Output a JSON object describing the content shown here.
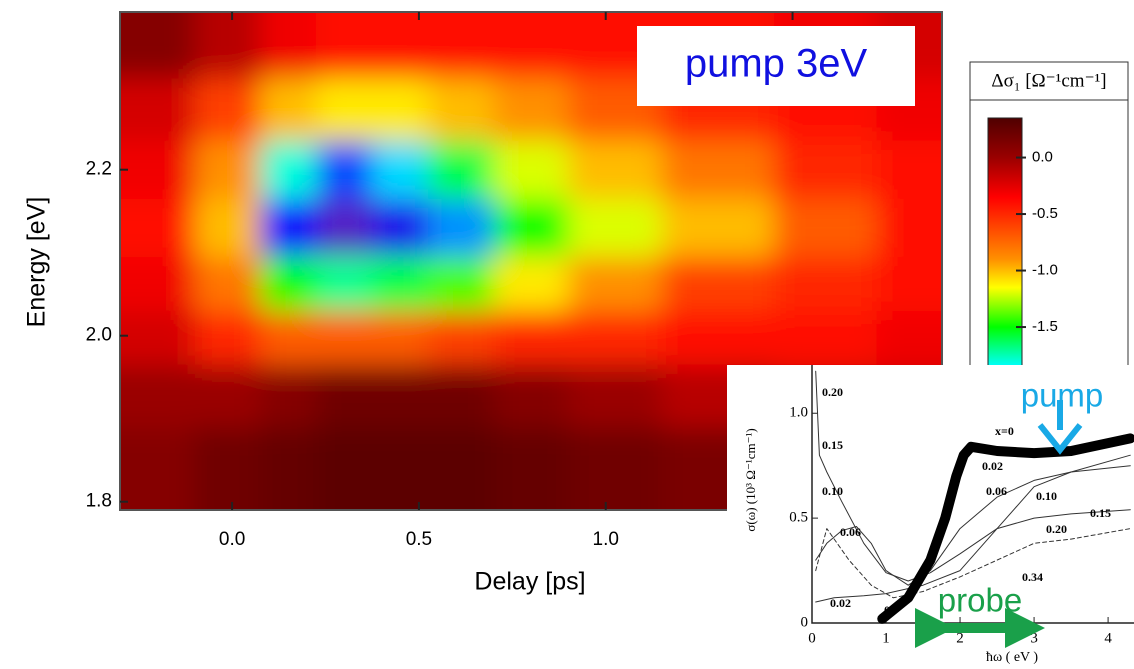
{
  "chart_data": [
    {
      "type": "heatmap",
      "xlabel": "Delay [ps]",
      "ylabel": "Energy [eV]",
      "x": [
        -0.2,
        0.0,
        0.15,
        0.3,
        0.45,
        0.6,
        0.8,
        1.0,
        1.3,
        1.6,
        1.85
      ],
      "y": [
        2.35,
        2.27,
        2.2,
        2.13,
        2.06,
        2.0,
        1.93,
        1.85
      ],
      "z": [
        [
          0.1,
          -0.1,
          -0.3,
          -0.4,
          -0.4,
          -0.4,
          -0.4,
          -0.4,
          -0.4,
          -0.3,
          -0.2
        ],
        [
          -0.2,
          -0.6,
          -1.0,
          -1.1,
          -1.1,
          -1.0,
          -0.9,
          -0.7,
          -0.5,
          -0.4,
          -0.3
        ],
        [
          -0.3,
          -0.9,
          -1.8,
          -2.1,
          -1.9,
          -1.6,
          -1.2,
          -1.0,
          -0.8,
          -0.5,
          -0.4
        ],
        [
          -0.4,
          -1.0,
          -2.2,
          -2.5,
          -2.3,
          -2.0,
          -1.5,
          -1.2,
          -1.0,
          -0.7,
          -0.4
        ],
        [
          -0.3,
          -0.8,
          -1.5,
          -1.7,
          -1.6,
          -1.4,
          -1.1,
          -0.9,
          -0.6,
          -0.5,
          -0.4
        ],
        [
          -0.2,
          -0.5,
          -0.7,
          -0.7,
          -0.7,
          -0.6,
          -0.5,
          -0.5,
          -0.4,
          -0.4,
          -0.3
        ],
        [
          0.0,
          0.0,
          0.1,
          0.2,
          0.2,
          0.2,
          0.1,
          0.0,
          -0.1,
          -0.2,
          -0.2
        ],
        [
          0.1,
          0.2,
          0.25,
          0.3,
          0.3,
          0.3,
          0.25,
          0.2,
          0.15,
          0.1,
          0.1
        ]
      ],
      "xlim": [
        -0.3,
        1.9
      ],
      "ylim": [
        1.79,
        2.39
      ],
      "xticks": [
        {
          "value": 0,
          "label": "0.0"
        },
        0.5,
        {
          "value": 1,
          "label": "1.0"
        },
        1.5
      ],
      "yticks": [
        2.2,
        {
          "value": 2,
          "label": "2.0"
        },
        1.8
      ],
      "colorbar": {
        "label": "Δσ₁ [Ω⁻¹cm⁻¹]",
        "clim": [
          -2.6,
          0.35
        ],
        "ticks": [
          {
            "value": 0,
            "label": "0.0"
          },
          -0.5,
          {
            "value": -1,
            "label": "-1.0"
          },
          -1.5
        ]
      },
      "colorscale": [
        [
          0.35,
          "#500000"
        ],
        [
          0.0,
          "#9a0000"
        ],
        [
          -0.35,
          "#ff0000"
        ],
        [
          -0.9,
          "#ff9000"
        ],
        [
          -1.15,
          "#ffff00"
        ],
        [
          -1.5,
          "#00ff00"
        ],
        [
          -1.85,
          "#00ffff"
        ],
        [
          -2.2,
          "#0000ff"
        ],
        [
          -2.6,
          "#7030b0"
        ]
      ],
      "annotations": [
        "pump 3eV"
      ]
    },
    {
      "type": "line",
      "xlabel": "ħω ( eV )",
      "ylabel": "σ(ω) (10³ Ω⁻¹cm⁻¹)",
      "xlim": [
        0,
        4.35
      ],
      "ylim": [
        0,
        1.23
      ],
      "xticks": [
        0,
        1,
        2,
        3,
        4
      ],
      "yticks": [
        0,
        0.5,
        {
          "value": 1,
          "label": "1.0"
        }
      ],
      "series": [
        {
          "color": "#000000",
          "width": 10,
          "x": [
            0.95,
            1.3,
            1.6,
            1.8,
            1.95,
            2.05,
            2.15,
            2.5,
            3.0,
            3.5,
            4.3
          ],
          "values": [
            0.02,
            0.12,
            0.3,
            0.5,
            0.7,
            0.8,
            0.84,
            0.82,
            0.81,
            0.82,
            0.88
          ]
        },
        {
          "color": "#333333",
          "width": 1,
          "x": [
            0.05,
            0.1,
            0.2,
            0.4,
            0.7,
            1.0,
            1.3,
            1.6,
            2.0,
            2.5,
            3.0,
            3.5,
            4.3
          ],
          "values": [
            1.2,
            0.8,
            0.72,
            0.58,
            0.38,
            0.24,
            0.2,
            0.24,
            0.33,
            0.45,
            0.5,
            0.52,
            0.54
          ]
        },
        {
          "color": "#333333",
          "width": 1,
          "x": [
            0.05,
            0.2,
            0.4,
            0.6,
            0.8,
            1.0,
            1.3,
            1.6,
            2.0,
            2.5,
            3.0,
            3.5,
            4.3
          ],
          "values": [
            0.3,
            0.38,
            0.44,
            0.46,
            0.38,
            0.25,
            0.18,
            0.25,
            0.45,
            0.6,
            0.68,
            0.72,
            0.75
          ]
        },
        {
          "color": "#333333",
          "width": 1,
          "dashed": true,
          "x": [
            0.05,
            0.2,
            0.5,
            0.8,
            1.1,
            1.5,
            2.0,
            2.5,
            3.0,
            3.5,
            4.3
          ],
          "values": [
            0.25,
            0.45,
            0.3,
            0.18,
            0.12,
            0.15,
            0.22,
            0.3,
            0.38,
            0.4,
            0.45
          ]
        },
        {
          "color": "#333333",
          "width": 1,
          "x": [
            0.05,
            0.3,
            0.7,
            1.0,
            1.5,
            2.0,
            2.5,
            3.0,
            3.5,
            4.3
          ],
          "values": [
            0.1,
            0.12,
            0.13,
            0.14,
            0.18,
            0.25,
            0.45,
            0.65,
            0.72,
            0.8
          ]
        }
      ],
      "annotations": [
        "0.20",
        "0.15",
        "0.10",
        "0.06",
        "0.02",
        "0",
        "x=0",
        "0.02",
        "0.06",
        "0.10",
        "0.15",
        "0.20",
        "0.34",
        "pump",
        "probe"
      ]
    }
  ]
}
